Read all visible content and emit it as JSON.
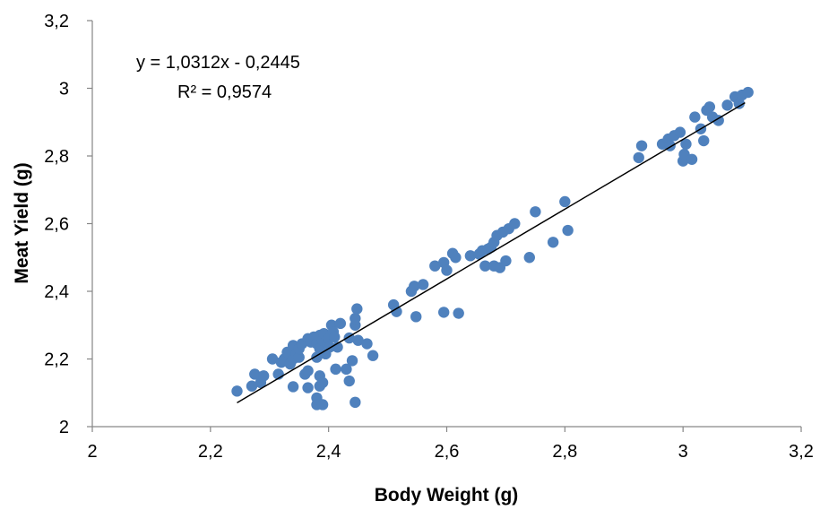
{
  "chart_data": {
    "type": "scatter",
    "xlabel": "Body Weight (g)",
    "ylabel": "Meat Yield (g)",
    "xlim": [
      2,
      3.2
    ],
    "ylim": [
      2,
      3.2
    ],
    "x_ticks": [
      2,
      2.2,
      2.4,
      2.6,
      2.8,
      3,
      3.2
    ],
    "y_ticks": [
      2,
      2.2,
      2.4,
      2.6,
      2.8,
      3,
      3.2
    ],
    "x_tick_labels": [
      "2",
      "2,2",
      "2,4",
      "2,6",
      "2,8",
      "3",
      "3,2"
    ],
    "y_tick_labels": [
      "2",
      "2,2",
      "2,4",
      "2,6",
      "2,8",
      "3",
      "3,2"
    ],
    "grid": false,
    "marker_color": "#4F81BD",
    "trendline": {
      "color": "#000000",
      "slope": 1.0312,
      "intercept": -0.2445,
      "x_range": [
        2.245,
        3.105
      ],
      "equation_label": "y = 1,0312x - 0,2445",
      "r2_label": "R² = 0,9574"
    },
    "series": [
      {
        "points": [
          [
            2.245,
            2.105
          ],
          [
            2.27,
            2.12
          ],
          [
            2.275,
            2.155
          ],
          [
            2.285,
            2.13
          ],
          [
            2.29,
            2.15
          ],
          [
            2.305,
            2.2
          ],
          [
            2.315,
            2.155
          ],
          [
            2.32,
            2.19
          ],
          [
            2.325,
            2.2
          ],
          [
            2.33,
            2.22
          ],
          [
            2.335,
            2.185
          ],
          [
            2.34,
            2.2
          ],
          [
            2.34,
            2.24
          ],
          [
            2.345,
            2.215
          ],
          [
            2.35,
            2.205
          ],
          [
            2.35,
            2.23
          ],
          [
            2.355,
            2.245
          ],
          [
            2.36,
            2.155
          ],
          [
            2.365,
            2.165
          ],
          [
            2.365,
            2.26
          ],
          [
            2.37,
            2.25
          ],
          [
            2.375,
            2.265
          ],
          [
            2.38,
            2.205
          ],
          [
            2.38,
            2.245
          ],
          [
            2.385,
            2.23
          ],
          [
            2.385,
            2.27
          ],
          [
            2.39,
            2.255
          ],
          [
            2.392,
            2.275
          ],
          [
            2.395,
            2.215
          ],
          [
            2.398,
            2.245
          ],
          [
            2.4,
            2.26
          ],
          [
            2.402,
            2.235
          ],
          [
            2.405,
            2.3
          ],
          [
            2.408,
            2.28
          ],
          [
            2.41,
            2.265
          ],
          [
            2.412,
            2.17
          ],
          [
            2.415,
            2.235
          ],
          [
            2.42,
            2.305
          ],
          [
            2.34,
            2.118
          ],
          [
            2.365,
            2.115
          ],
          [
            2.38,
            2.085
          ],
          [
            2.38,
            2.065
          ],
          [
            2.385,
            2.12
          ],
          [
            2.385,
            2.15
          ],
          [
            2.39,
            2.065
          ],
          [
            2.39,
            2.13
          ],
          [
            2.43,
            2.17
          ],
          [
            2.435,
            2.135
          ],
          [
            2.44,
            2.195
          ],
          [
            2.445,
            2.072
          ],
          [
            2.435,
            2.262
          ],
          [
            2.445,
            2.3
          ],
          [
            2.445,
            2.32
          ],
          [
            2.448,
            2.348
          ],
          [
            2.45,
            2.255
          ],
          [
            2.465,
            2.245
          ],
          [
            2.475,
            2.21
          ],
          [
            2.51,
            2.36
          ],
          [
            2.515,
            2.34
          ],
          [
            2.54,
            2.4
          ],
          [
            2.545,
            2.415
          ],
          [
            2.548,
            2.325
          ],
          [
            2.56,
            2.42
          ],
          [
            2.58,
            2.475
          ],
          [
            2.595,
            2.485
          ],
          [
            2.595,
            2.338
          ],
          [
            2.6,
            2.462
          ],
          [
            2.61,
            2.512
          ],
          [
            2.615,
            2.5
          ],
          [
            2.62,
            2.335
          ],
          [
            2.64,
            2.505
          ],
          [
            2.655,
            2.51
          ],
          [
            2.66,
            2.52
          ],
          [
            2.665,
            2.475
          ],
          [
            2.67,
            2.525
          ],
          [
            2.675,
            2.53
          ],
          [
            2.68,
            2.475
          ],
          [
            2.68,
            2.545
          ],
          [
            2.685,
            2.565
          ],
          [
            2.69,
            2.47
          ],
          [
            2.695,
            2.575
          ],
          [
            2.7,
            2.49
          ],
          [
            2.705,
            2.585
          ],
          [
            2.715,
            2.6
          ],
          [
            2.74,
            2.5
          ],
          [
            2.75,
            2.635
          ],
          [
            2.78,
            2.545
          ],
          [
            2.8,
            2.665
          ],
          [
            2.805,
            2.58
          ],
          [
            2.925,
            2.795
          ],
          [
            2.93,
            2.83
          ],
          [
            2.965,
            2.835
          ],
          [
            2.975,
            2.85
          ],
          [
            2.978,
            2.83
          ],
          [
            2.985,
            2.86
          ],
          [
            2.995,
            2.87
          ],
          [
            3.0,
            2.785
          ],
          [
            3.002,
            2.805
          ],
          [
            3.005,
            2.835
          ],
          [
            3.015,
            2.79
          ],
          [
            3.02,
            2.915
          ],
          [
            3.03,
            2.88
          ],
          [
            3.035,
            2.845
          ],
          [
            3.04,
            2.935
          ],
          [
            3.045,
            2.945
          ],
          [
            3.05,
            2.915
          ],
          [
            3.06,
            2.905
          ],
          [
            3.075,
            2.95
          ],
          [
            3.088,
            2.975
          ],
          [
            3.095,
            2.955
          ],
          [
            3.1,
            2.98
          ],
          [
            3.11,
            2.988
          ]
        ]
      }
    ]
  }
}
